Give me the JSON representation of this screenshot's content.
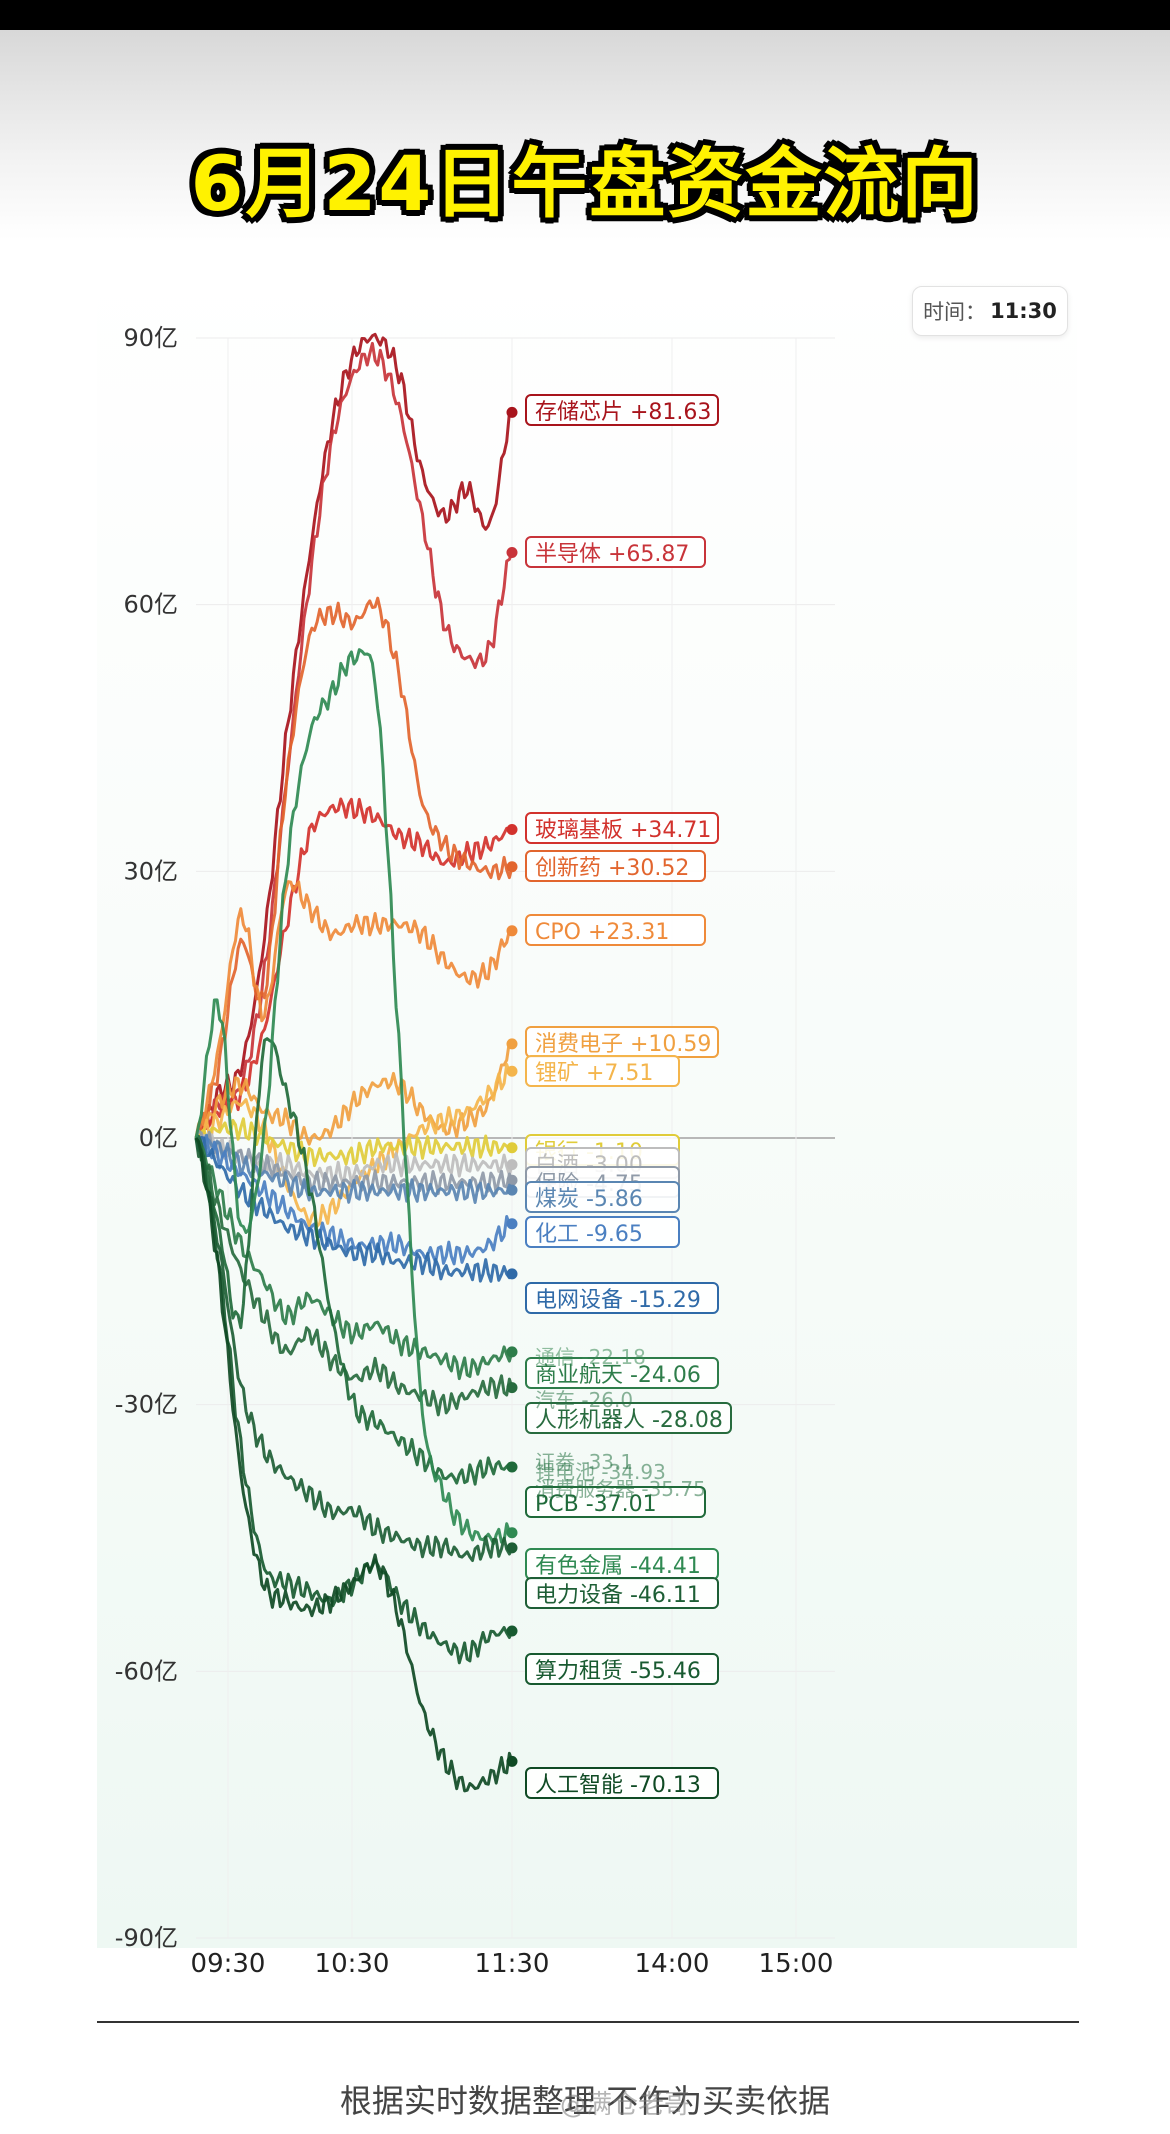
{
  "page": {
    "title": "6月24日午盘资金流向",
    "footer_note": "根据实时数据整理 不作为买卖依据",
    "watermark": "@满仓老哥"
  },
  "time_badge": {
    "label": "时间：",
    "value": "11:30"
  },
  "chart_data": {
    "type": "line",
    "title": "6月24日午盘资金流向",
    "xlabel": "",
    "ylabel": "",
    "x_ticks": [
      "09:30",
      "10:30",
      "11:30",
      "14:00",
      "15:00"
    ],
    "y_ticks": [
      "90亿",
      "60亿",
      "30亿",
      "0亿",
      "-30亿",
      "-60亿",
      "-90亿"
    ],
    "ylim": [
      -90,
      90
    ],
    "grid": true,
    "series": [
      {
        "name": "存储芯片",
        "end_value": "+81.63",
        "color": "#a8141c",
        "values": [
          0,
          5,
          8,
          22,
          45,
          65,
          80,
          88,
          90,
          86,
          75,
          70,
          73,
          69,
          81.63
        ]
      },
      {
        "name": "半导体",
        "end_value": "+65.87",
        "color": "#c8343a",
        "values": [
          0,
          4,
          6,
          18,
          40,
          62,
          78,
          86,
          88,
          82,
          70,
          58,
          54,
          55,
          65.87
        ]
      },
      {
        "name": "玻璃基板",
        "end_value": "+34.71",
        "color": "#d2322d",
        "values": [
          0,
          3,
          5,
          12,
          24,
          34,
          37,
          37,
          36,
          34,
          33,
          31,
          32,
          33,
          34.71
        ]
      },
      {
        "name": "创新药",
        "end_value": "+30.52",
        "color": "#e2652e",
        "values": [
          0,
          8,
          22,
          16,
          40,
          56,
          59,
          58,
          60,
          52,
          38,
          33,
          31,
          30,
          30.52
        ]
      },
      {
        "name": "CPO",
        "end_value": "+23.31",
        "color": "#ef8a3a",
        "values": [
          0,
          10,
          25,
          14,
          28,
          26,
          23,
          24,
          24,
          24,
          23,
          20,
          18,
          19,
          23.31
        ]
      },
      {
        "name": "消费电子",
        "end_value": "+10.59",
        "color": "#f0a040",
        "values": [
          0,
          4,
          6,
          3,
          2,
          0,
          1,
          4,
          6,
          6,
          3,
          1,
          2,
          4,
          10.59
        ]
      },
      {
        "name": "锂矿",
        "end_value": "+7.51",
        "color": "#f4b54c",
        "values": [
          0,
          2,
          4,
          1,
          -5,
          -9,
          -8,
          -5,
          -3,
          -1,
          1,
          2,
          3,
          5,
          7.51
        ]
      },
      {
        "name": "银行",
        "end_value": "-1.10",
        "color": "#e0cc3a",
        "values": [
          0,
          1,
          1,
          0,
          -1,
          -2,
          -2,
          -2,
          -1,
          -1,
          -1,
          -1,
          -1,
          -1,
          -1.1
        ]
      },
      {
        "name": "白酒",
        "end_value": "-3.00",
        "color": "#bdbdbd",
        "values": [
          0,
          -1,
          -2,
          -3,
          -3,
          -4,
          -4,
          -4,
          -3,
          -3,
          -3,
          -3,
          -3,
          -3,
          -3.0
        ]
      },
      {
        "name": "保险",
        "end_value": "-4.75",
        "color": "#8f9aa8",
        "values": [
          0,
          -1,
          -2,
          -3,
          -4,
          -5,
          -5,
          -5,
          -5,
          -5,
          -5,
          -5,
          -5,
          -5,
          -4.75
        ]
      },
      {
        "name": "煤炭",
        "end_value": "-5.86",
        "color": "#5a86b2",
        "values": [
          0,
          -1,
          -3,
          -4,
          -5,
          -6,
          -6,
          -6,
          -6,
          -6,
          -6,
          -6,
          -6,
          -6,
          -5.86
        ]
      },
      {
        "name": "化工",
        "end_value": "-9.65",
        "color": "#4a7fc1",
        "values": [
          0,
          -2,
          -4,
          -6,
          -8,
          -10,
          -11,
          -12,
          -12,
          -12,
          -13,
          -13,
          -13,
          -12,
          -9.65
        ]
      },
      {
        "name": "电网设备",
        "end_value": "-15.29",
        "color": "#2f6aa8",
        "values": [
          0,
          -3,
          -6,
          -8,
          -10,
          -11,
          -12,
          -13,
          -13,
          -14,
          -14,
          -15,
          -15,
          -15,
          -15.29
        ]
      },
      {
        "name": "商业航天",
        "end_value": "-24.06",
        "color": "#2e7d4a",
        "values": [
          0,
          -6,
          -12,
          -16,
          -20,
          -18,
          -20,
          -22,
          -21,
          -23,
          -24,
          -25,
          -26,
          -25,
          -24.06
        ]
      },
      {
        "name": "人形机器人",
        "end_value": "-28.08",
        "color": "#276b3e",
        "values": [
          0,
          -8,
          -15,
          -20,
          -24,
          -22,
          -25,
          -27,
          -26,
          -28,
          -29,
          -30,
          -29,
          -28,
          -28.08
        ]
      },
      {
        "name": "PCB",
        "end_value": "-37.01",
        "color": "#1f6a3a",
        "values": [
          0,
          -10,
          -20,
          10,
          5,
          -5,
          -20,
          -30,
          -32,
          -34,
          -36,
          -38,
          -38,
          -37,
          -37.01
        ]
      },
      {
        "name": "有色金属",
        "end_value": "-44.41",
        "color": "#2f8a52",
        "values": [
          0,
          15,
          -10,
          0,
          30,
          45,
          50,
          54,
          50,
          10,
          -30,
          -40,
          -44,
          -45,
          -44.41
        ]
      },
      {
        "name": "电力设备",
        "end_value": "-46.11",
        "color": "#1d5e35",
        "values": [
          0,
          -12,
          -28,
          -35,
          -38,
          -40,
          -42,
          -42,
          -44,
          -45,
          -46,
          -46,
          -47,
          -46,
          -46.11
        ]
      },
      {
        "name": "算力租赁",
        "end_value": "-55.46",
        "color": "#185a30",
        "values": [
          0,
          -14,
          -35,
          -48,
          -50,
          -51,
          -52,
          -50,
          -48,
          -52,
          -55,
          -57,
          -58,
          -56,
          -55.46
        ]
      },
      {
        "name": "人工智能",
        "end_value": "-70.13",
        "color": "#0f4a24",
        "values": [
          0,
          -15,
          -38,
          -50,
          -52,
          -53,
          -52,
          -50,
          -48,
          -54,
          -64,
          -70,
          -73,
          -72,
          -70.13
        ]
      }
    ],
    "hidden_label_fragments": [
      {
        "text": "通信",
        "end_value": "-22.18",
        "color": "#3a8a56"
      },
      {
        "text": "汽车",
        "end_value": "-26.0",
        "color": "#2a7446"
      },
      {
        "text": "证券",
        "end_value": "-33.1",
        "color": "#2a7446"
      },
      {
        "text": "锂电池",
        "end_value": "-34.93",
        "color": "#2a7446"
      },
      {
        "text": "消费服务器",
        "end_value": "-35.75",
        "color": "#2a7446"
      }
    ]
  }
}
